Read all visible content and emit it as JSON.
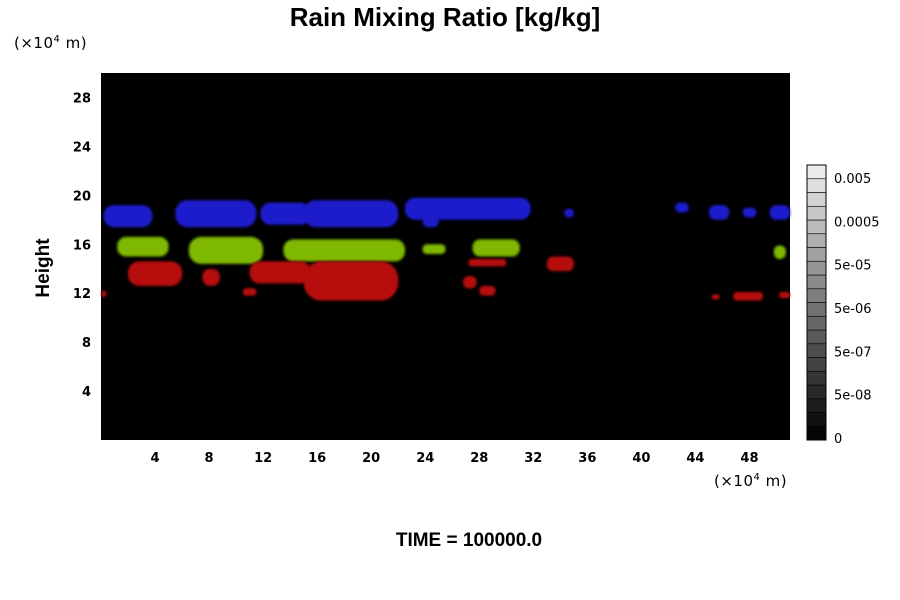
{
  "chart_data": {
    "type": "heatmap",
    "title": "Rain Mixing Ratio [kg/kg]",
    "ylabel": "Height",
    "xlabel": "",
    "x_unit_prefix": "(×10",
    "x_unit_exp": "4",
    "x_unit_suffix": " m)",
    "y_unit_prefix": "(×10",
    "y_unit_exp": "4",
    "y_unit_suffix": " m)",
    "xlim": [
      0,
      51
    ],
    "ylim": [
      0,
      30
    ],
    "x_ticks": [
      "4",
      "8",
      "12",
      "16",
      "20",
      "24",
      "28",
      "32",
      "36",
      "40",
      "44",
      "48"
    ],
    "y_ticks": [
      "4",
      "8",
      "12",
      "16",
      "20",
      "24",
      "28"
    ],
    "background_color": "#000000",
    "colorbar": {
      "labels": [
        "0.005",
        "0.0005",
        "5e-05",
        "5e-06",
        "5e-07",
        "5e-08",
        "0"
      ],
      "levels": 20
    },
    "bands": [
      {
        "color": "#1a1acc",
        "blobs": [
          {
            "x": [
              0.2,
              3.8
            ],
            "y": [
              17.4,
              19.2
            ]
          },
          {
            "x": [
              5.5,
              11.5
            ],
            "y": [
              17.4,
              19.6
            ]
          },
          {
            "x": [
              11.8,
              15.5
            ],
            "y": [
              17.6,
              19.4
            ]
          },
          {
            "x": [
              15.0,
              22.0
            ],
            "y": [
              17.4,
              19.6
            ]
          },
          {
            "x": [
              22.5,
              31.8
            ],
            "y": [
              18.0,
              19.8
            ]
          },
          {
            "x": [
              23.8,
              25.0
            ],
            "y": [
              17.4,
              18.4
            ]
          },
          {
            "x": [
              34.3,
              35.0
            ],
            "y": [
              18.2,
              18.9
            ]
          },
          {
            "x": [
              42.5,
              43.5
            ],
            "y": [
              18.6,
              19.4
            ]
          },
          {
            "x": [
              45.0,
              46.5
            ],
            "y": [
              18.0,
              19.2
            ]
          },
          {
            "x": [
              47.5,
              48.5
            ],
            "y": [
              18.2,
              19.0
            ]
          },
          {
            "x": [
              49.5,
              51.0
            ],
            "y": [
              18.0,
              19.2
            ]
          }
        ]
      },
      {
        "color": "#7fb800",
        "blobs": [
          {
            "x": [
              1.2,
              5.0
            ],
            "y": [
              15.0,
              16.6
            ]
          },
          {
            "x": [
              6.5,
              12.0
            ],
            "y": [
              14.4,
              16.6
            ]
          },
          {
            "x": [
              13.5,
              22.5
            ],
            "y": [
              14.6,
              16.4
            ]
          },
          {
            "x": [
              23.8,
              25.5
            ],
            "y": [
              15.2,
              16.0
            ]
          },
          {
            "x": [
              27.5,
              31.0
            ],
            "y": [
              15.0,
              16.4
            ]
          },
          {
            "x": [
              49.8,
              50.7
            ],
            "y": [
              14.8,
              15.9
            ]
          }
        ]
      },
      {
        "color": "#b81010",
        "blobs": [
          {
            "x": [
              2.0,
              6.0
            ],
            "y": [
              12.6,
              14.6
            ]
          },
          {
            "x": [
              7.5,
              8.8
            ],
            "y": [
              12.6,
              14.0
            ]
          },
          {
            "x": [
              11.0,
              15.5
            ],
            "y": [
              12.8,
              14.6
            ]
          },
          {
            "x": [
              15.0,
              22.0
            ],
            "y": [
              11.4,
              14.6
            ]
          },
          {
            "x": [
              10.5,
              11.5
            ],
            "y": [
              11.8,
              12.4
            ]
          },
          {
            "x": [
              26.8,
              27.8
            ],
            "y": [
              12.4,
              13.4
            ]
          },
          {
            "x": [
              27.2,
              30.0
            ],
            "y": [
              14.2,
              14.8
            ]
          },
          {
            "x": [
              28.0,
              29.2
            ],
            "y": [
              11.8,
              12.6
            ]
          },
          {
            "x": [
              33.0,
              35.0
            ],
            "y": [
              13.8,
              15.0
            ]
          },
          {
            "x": [
              0.0,
              0.4
            ],
            "y": [
              11.7,
              12.2
            ]
          },
          {
            "x": [
              45.2,
              45.8
            ],
            "y": [
              11.5,
              11.9
            ]
          },
          {
            "x": [
              46.8,
              49.0
            ],
            "y": [
              11.4,
              12.1
            ]
          },
          {
            "x": [
              50.2,
              51.0
            ],
            "y": [
              11.6,
              12.1
            ]
          }
        ]
      }
    ]
  },
  "footer": {
    "time_label": "TIME = 100000.0"
  }
}
